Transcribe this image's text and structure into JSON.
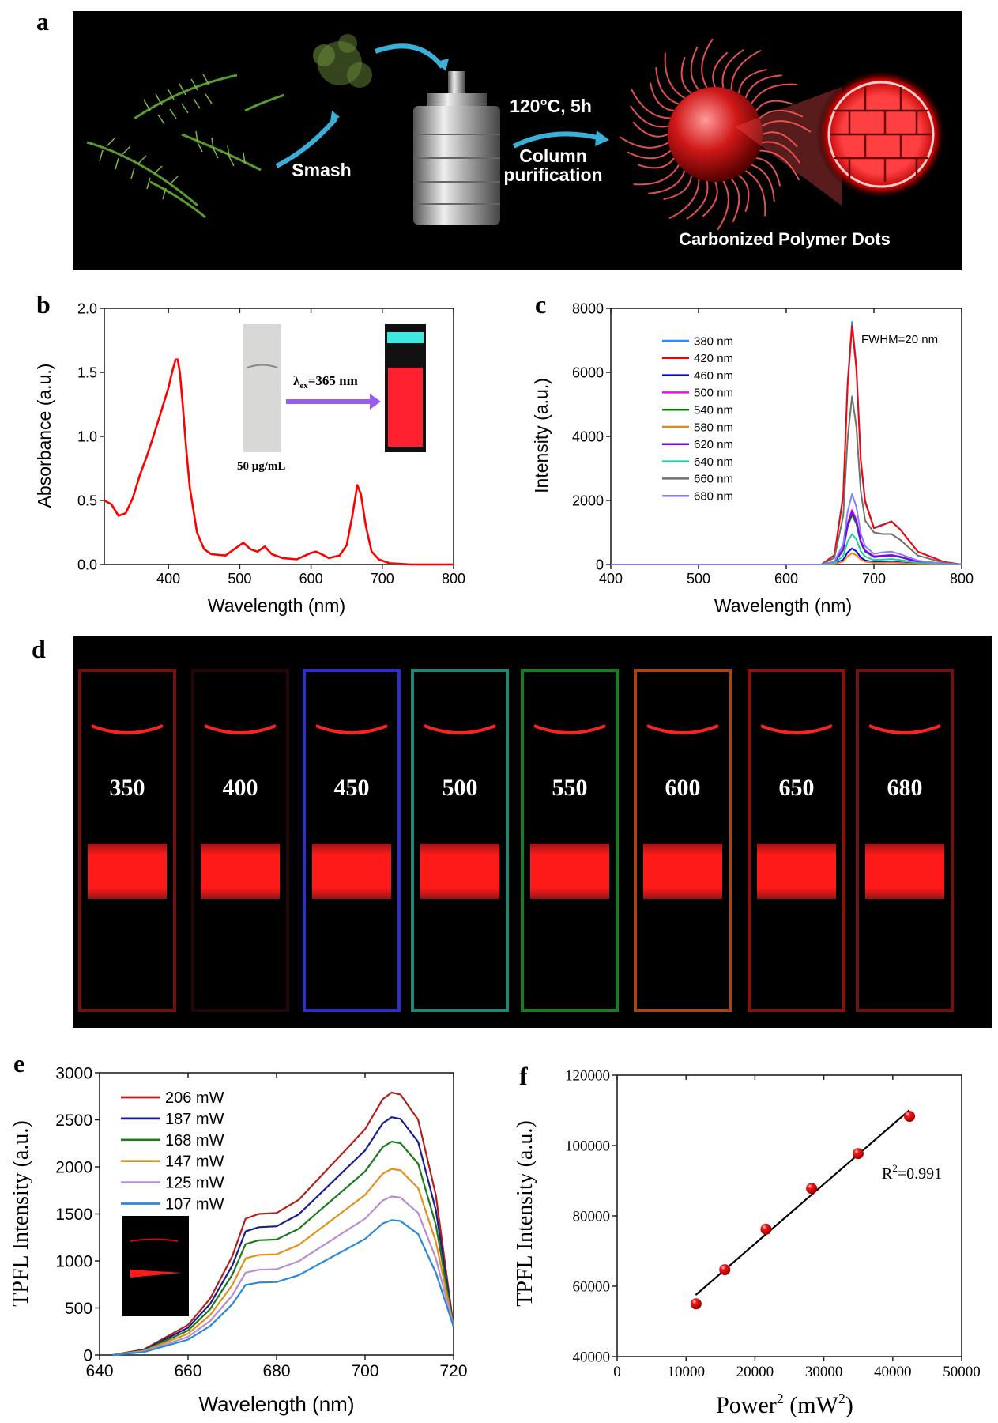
{
  "panel_labels": [
    "a",
    "b",
    "c",
    "d",
    "e",
    "f"
  ],
  "panel_a": {
    "step1": "Smash",
    "step2_line1": "120°C, 5h",
    "step2_line2": "Column",
    "step2_line3": "purification",
    "product": "Carbonized Polymer Dots",
    "colors": {
      "background": "#000000",
      "leaf": "#4f8a2a",
      "dot": "#e0262a",
      "arrow": "#3ab0d8"
    }
  },
  "panel_d": {
    "labels": [
      "350",
      "400",
      "450",
      "500",
      "550",
      "600",
      "650",
      "680"
    ],
    "cuvette_colors": [
      "#8a1a10",
      "#2a0a0a",
      "#3a3aff",
      "#2aa890",
      "#1f9a2a",
      "#d2561a",
      "#a01a10",
      "#901810"
    ],
    "emission_color": "#ff1a1a"
  },
  "chart_data": [
    {
      "id": "b",
      "type": "line",
      "xlabel": "Wavelength (nm)",
      "ylabel": "Absorbance (a.u.)",
      "xlim": [
        310,
        800
      ],
      "ylim": [
        0,
        2.0
      ],
      "xticks": [
        400,
        500,
        600,
        700,
        800
      ],
      "yticks": [
        "0.0",
        "0.5",
        "1.0",
        "1.5",
        "2.0"
      ],
      "grid": false,
      "inset": {
        "excitation_prefix": "λ",
        "excitation_sub": "ex",
        "excitation_rest": "=365 nm",
        "concentration": "50 μg/mL"
      },
      "series": [
        {
          "color": "#ff0000",
          "x": [
            310,
            320,
            330,
            340,
            350,
            360,
            370,
            380,
            390,
            400,
            405,
            410,
            413,
            416,
            420,
            425,
            430,
            440,
            450,
            460,
            480,
            495,
            505,
            515,
            525,
            535,
            545,
            560,
            580,
            600,
            607,
            615,
            625,
            640,
            650,
            658,
            665,
            670,
            677,
            685,
            695,
            710,
            740,
            800
          ],
          "y": [
            0.5,
            0.47,
            0.38,
            0.4,
            0.52,
            0.7,
            0.85,
            1.02,
            1.2,
            1.38,
            1.5,
            1.6,
            1.6,
            1.5,
            1.25,
            0.9,
            0.6,
            0.25,
            0.12,
            0.08,
            0.07,
            0.13,
            0.17,
            0.12,
            0.1,
            0.14,
            0.08,
            0.05,
            0.04,
            0.09,
            0.1,
            0.08,
            0.05,
            0.07,
            0.15,
            0.38,
            0.62,
            0.55,
            0.3,
            0.1,
            0.04,
            0.01,
            0.0,
            0.0
          ]
        }
      ]
    },
    {
      "id": "c",
      "type": "line",
      "xlabel": "Wavelength (nm)",
      "ylabel": "Intensity (a.u.)",
      "xlim": [
        400,
        800
      ],
      "ylim": [
        0,
        8000
      ],
      "xticks": [
        400,
        500,
        600,
        700,
        800
      ],
      "yticks": [
        "0",
        "2000",
        "4000",
        "6000",
        "8000"
      ],
      "grid": false,
      "legend": "top-left",
      "annotation": "FWHM=20 nm",
      "x": [
        400,
        640,
        655,
        665,
        670,
        675,
        680,
        685,
        690,
        700,
        710,
        720,
        730,
        750,
        780,
        800
      ],
      "series": [
        {
          "name": "380 nm",
          "color": "#1e90ff",
          "y": [
            0,
            0,
            300,
            2200,
            5700,
            7580,
            6200,
            3300,
            2000,
            1150,
            1250,
            1350,
            1100,
            400,
            80,
            0
          ]
        },
        {
          "name": "420 nm",
          "color": "#ff0000",
          "y": [
            0,
            0,
            290,
            2150,
            5600,
            7450,
            6100,
            3250,
            1950,
            1130,
            1230,
            1340,
            1090,
            400,
            80,
            0
          ]
        },
        {
          "name": "460 nm",
          "color": "#0000ff",
          "y": [
            0,
            0,
            20,
            150,
            380,
            500,
            410,
            220,
            130,
            75,
            85,
            90,
            70,
            25,
            5,
            0
          ]
        },
        {
          "name": "500 nm",
          "color": "#ff00ff",
          "y": [
            0,
            0,
            70,
            500,
            1280,
            1700,
            1390,
            740,
            440,
            255,
            280,
            300,
            245,
            90,
            18,
            0
          ]
        },
        {
          "name": "540 nm",
          "color": "#008000",
          "y": [
            0,
            0,
            60,
            450,
            1170,
            1550,
            1270,
            680,
            400,
            230,
            255,
            275,
            225,
            80,
            16,
            0
          ]
        },
        {
          "name": "580 nm",
          "color": "#ff8000",
          "y": [
            0,
            0,
            14,
            100,
            260,
            350,
            290,
            155,
            90,
            52,
            58,
            62,
            50,
            18,
            4,
            0
          ]
        },
        {
          "name": "620 nm",
          "color": "#8000ff",
          "y": [
            0,
            0,
            65,
            480,
            1240,
            1650,
            1350,
            720,
            430,
            250,
            270,
            290,
            240,
            85,
            17,
            0
          ]
        },
        {
          "name": "640 nm",
          "color": "#20d0a0",
          "y": [
            0,
            0,
            38,
            280,
            710,
            950,
            780,
            415,
            250,
            140,
            155,
            170,
            140,
            50,
            10,
            0
          ]
        },
        {
          "name": "660 nm",
          "color": "#707070",
          "y": [
            0,
            0,
            210,
            1520,
            3940,
            5250,
            4300,
            2290,
            1370,
            1000,
            950,
            950,
            770,
            280,
            55,
            0
          ]
        },
        {
          "name": "680 nm",
          "color": "#8080ff",
          "y": [
            0,
            0,
            88,
            640,
            1650,
            2200,
            1800,
            960,
            570,
            330,
            380,
            400,
            320,
            120,
            25,
            0
          ]
        }
      ]
    },
    {
      "id": "e",
      "type": "line",
      "xlabel": "Wavelength (nm)",
      "ylabel": "TPFL Intensity (a.u.)",
      "xlim": [
        640,
        720
      ],
      "ylim": [
        0,
        3000
      ],
      "xticks": [
        640,
        660,
        680,
        700,
        720
      ],
      "yticks": [
        "0",
        "500",
        "1000",
        "1500",
        "2000",
        "2500",
        "3000"
      ],
      "grid": false,
      "legend": "top-left",
      "x": [
        643,
        650,
        660,
        665,
        670,
        673,
        676,
        680,
        685,
        690,
        695,
        700,
        704,
        706,
        708,
        712,
        716,
        720
      ],
      "series": [
        {
          "name": "206 mW",
          "color": "#b0201e",
          "y": [
            0,
            60,
            320,
            600,
            1050,
            1450,
            1500,
            1510,
            1650,
            1900,
            2150,
            2400,
            2720,
            2790,
            2770,
            2500,
            1700,
            300
          ]
        },
        {
          "name": "187 mW",
          "color": "#1a1f8a",
          "y": [
            0,
            54,
            290,
            544,
            951,
            1314,
            1359,
            1368,
            1495,
            1721,
            1948,
            2174,
            2464,
            2528,
            2510,
            2265,
            1540,
            300
          ]
        },
        {
          "name": "168 mW",
          "color": "#1f7a1f",
          "y": [
            0,
            49,
            260,
            488,
            854,
            1179,
            1220,
            1228,
            1341,
            1545,
            1748,
            1951,
            2211,
            2268,
            2252,
            2033,
            1382,
            300
          ]
        },
        {
          "name": "147 mW",
          "color": "#e0921e",
          "y": [
            0,
            43,
            227,
            425,
            744,
            1028,
            1064,
            1071,
            1170,
            1347,
            1524,
            1702,
            1928,
            1978,
            1964,
            1773,
            1205,
            300
          ]
        },
        {
          "name": "125 mW",
          "color": "#b88ed0",
          "y": [
            0,
            36,
            193,
            362,
            634,
            876,
            906,
            912,
            997,
            1148,
            1299,
            1450,
            1643,
            1685,
            1673,
            1510,
            1027,
            300
          ]
        },
        {
          "name": "107 mW",
          "color": "#2a8ad4",
          "y": [
            0,
            31,
            164,
            308,
            540,
            745,
            771,
            776,
            848,
            977,
            1105,
            1234,
            1398,
            1434,
            1424,
            1285,
            874,
            300
          ]
        }
      ]
    },
    {
      "id": "f",
      "type": "scatter",
      "xlabel_main": "Power",
      "xlabel_sup": "2",
      "xlabel_unit": " (mW",
      "xlabel_unit_sup": "2",
      "xlabel_close": ")",
      "ylabel": "TPFL Intensity (a.u.)",
      "xlim": [
        0,
        50000
      ],
      "ylim": [
        40000,
        120000
      ],
      "xticks": [
        0,
        10000,
        20000,
        30000,
        40000,
        50000
      ],
      "yticks": [
        "40000",
        "60000",
        "80000",
        "100000",
        "120000"
      ],
      "grid": false,
      "annotation_main": "R",
      "annotation_sup": "2",
      "annotation_rest": "=0.991",
      "points_color": "#e01010",
      "x": [
        11449,
        15625,
        21609,
        28224,
        34969,
        42436
      ],
      "y": [
        55000,
        64700,
        76200,
        87800,
        97700,
        108300
      ],
      "fit": {
        "slope": 1.694,
        "intercept": 38200,
        "x_range": [
          11400,
          42400
        ]
      }
    }
  ]
}
